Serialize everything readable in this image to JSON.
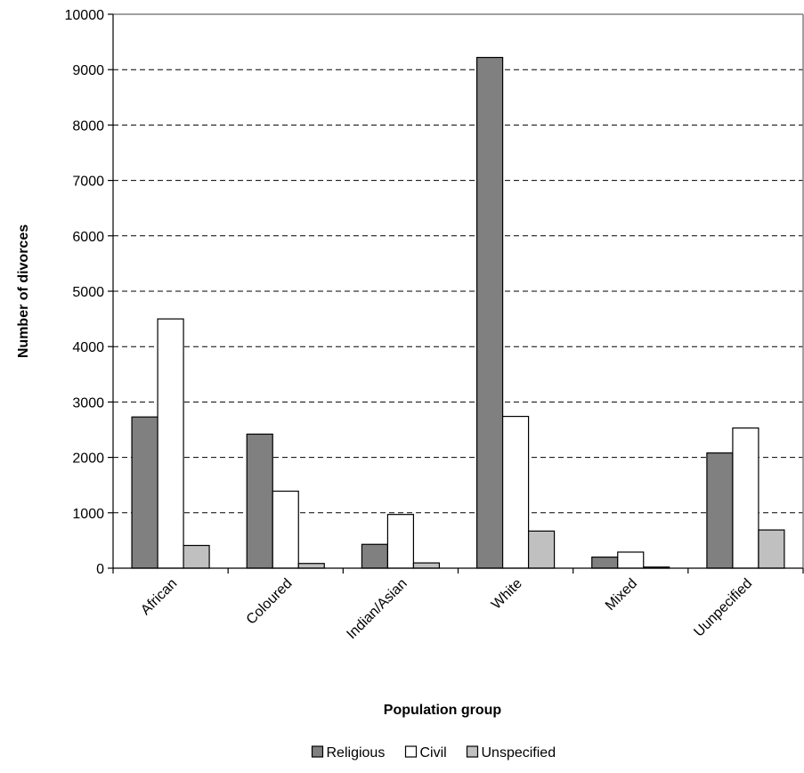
{
  "chart_data": {
    "type": "bar",
    "title": "",
    "xlabel": "Population group",
    "ylabel": "Number of divorces",
    "ylim": [
      0,
      10000
    ],
    "yticks": [
      0,
      1000,
      2000,
      3000,
      4000,
      5000,
      6000,
      7000,
      8000,
      9000,
      10000
    ],
    "grid": true,
    "legend_position": "bottom",
    "categories": [
      "African",
      "Coloured",
      "Indian/Asian",
      "White",
      "Mixed",
      "Uunpecified"
    ],
    "series": [
      {
        "name": "Religious",
        "color": "#808080",
        "values": [
          2730,
          2420,
          430,
          9220,
          200,
          2080
        ]
      },
      {
        "name": "Civil",
        "color": "#ffffff",
        "values": [
          4500,
          1390,
          970,
          2740,
          290,
          2530
        ]
      },
      {
        "name": "Unspecified",
        "color": "#c0c0c0",
        "values": [
          410,
          85,
          95,
          670,
          20,
          690
        ]
      }
    ]
  }
}
